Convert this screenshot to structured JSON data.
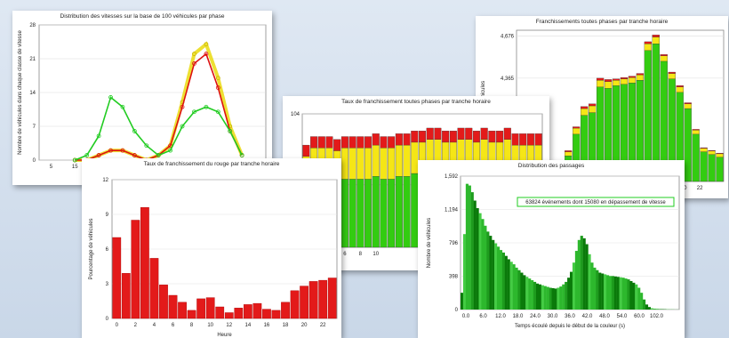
{
  "chart_data": [
    {
      "id": "speeds",
      "type": "line",
      "title": "Distribution des vitesses sur la base de 100 véhicules par phase",
      "ylabel": "Nombre de véhicules dans chaque classe de vitesse",
      "ylim": [
        0,
        28
      ],
      "yticks": [
        "0",
        "7",
        "14",
        "21",
        "28"
      ],
      "xlim": [
        0,
        95
      ],
      "xticks": [
        {
          "v": 5,
          "label": "5"
        },
        {
          "v": 15,
          "label": "15"
        },
        {
          "v": 25,
          "label": "25"
        }
      ],
      "series": [
        {
          "color": "#22cc22",
          "x": [
            15,
            20,
            25,
            30,
            35,
            40,
            45,
            50,
            55,
            60,
            65,
            70,
            75,
            80,
            85
          ],
          "values": [
            0,
            1,
            5,
            13,
            11,
            6,
            3,
            1,
            2,
            7,
            10,
            11,
            10,
            6,
            1
          ]
        },
        {
          "color": "#dd1111",
          "x": [
            15,
            20,
            25,
            30,
            35,
            40,
            45,
            50,
            55,
            60,
            65,
            70,
            75,
            80,
            85
          ],
          "values": [
            0,
            0,
            1,
            2,
            2,
            1,
            0,
            1,
            3,
            11,
            20,
            22,
            15,
            6,
            1
          ]
        },
        {
          "color": "#e8d800",
          "x": [
            15,
            20,
            25,
            30,
            35,
            40,
            45,
            50,
            55,
            60,
            65,
            70,
            75,
            80,
            85
          ],
          "values": [
            0,
            0,
            1,
            2,
            2,
            1,
            0,
            1,
            3,
            12,
            22,
            24,
            17,
            7,
            1
          ]
        }
      ]
    },
    {
      "id": "red_rate",
      "type": "bar",
      "title": "Taux de franchissement du rouge par tranche horaire",
      "ylabel": "Pourcentage de véhicules",
      "xlabel": "Heure",
      "ylim": [
        0,
        12
      ],
      "yticks": [
        "0",
        "3",
        "6",
        "9",
        "12"
      ],
      "xticks": [
        "0",
        "2",
        "4",
        "6",
        "8",
        "10",
        "12",
        "14",
        "16",
        "18",
        "20",
        "22"
      ],
      "color": "#e31a1a",
      "values": [
        7.0,
        3.9,
        8.5,
        9.6,
        5.2,
        2.9,
        2.0,
        1.4,
        0.7,
        1.7,
        1.8,
        1.0,
        0.5,
        0.9,
        1.2,
        1.3,
        0.8,
        0.7,
        1.4,
        2.4,
        2.8,
        3.2,
        3.3,
        3.5
      ]
    },
    {
      "id": "phases_rate",
      "type": "bar",
      "title": "Taux de franchissement toutes phases par tranche horaire",
      "ylim": [
        79,
        104
      ],
      "yticks": [
        {
          "v": 79,
          "label": "79"
        },
        {
          "v": 104,
          "label": "104"
        }
      ],
      "xticks": [
        "2",
        "4",
        "6",
        "8",
        "10"
      ],
      "series": [
        {
          "name": "green",
          "color": "#33cc11",
          "values": [
            80,
            81,
            81,
            81,
            80,
            81,
            81,
            81,
            81,
            82,
            81,
            81,
            82,
            82,
            83,
            83,
            84,
            84,
            83,
            83,
            84,
            84,
            83,
            84,
            83,
            83,
            84,
            82,
            82,
            82,
            82
          ]
        },
        {
          "name": "yellow",
          "color": "#f5e616",
          "values": [
            9,
            11,
            11,
            11,
            11,
            11,
            11,
            11,
            11,
            11,
            11,
            11,
            11,
            11,
            11,
            11,
            11,
            11,
            11,
            11,
            11,
            11,
            11,
            11,
            11,
            11,
            11,
            11,
            11,
            11,
            11
          ]
        },
        {
          "name": "red",
          "color": "#e31a1a",
          "values": [
            4,
            4,
            4,
            4,
            4,
            4,
            4,
            4,
            4,
            4,
            4,
            4,
            4,
            4,
            4,
            4,
            4,
            4,
            4,
            4,
            4,
            4,
            4,
            4,
            4,
            4,
            4,
            4,
            4,
            4,
            4
          ]
        }
      ]
    },
    {
      "id": "crossings",
      "type": "bar",
      "title": "Franchissements toutes phases par tranche horaire",
      "ylabel": "Nombre de véhicules",
      "yticks": [
        {
          "v": 4365,
          "label": "4,365"
        },
        {
          "v": 4676,
          "label": "4,676"
        }
      ],
      "xticks": [
        {
          "i": 20,
          "label": "18"
        },
        {
          "i": 22,
          "label": "20"
        },
        {
          "i": 24,
          "label": "22"
        }
      ],
      "ylim": [
        3600,
        4720
      ],
      "series": [
        {
          "name": "green",
          "color": "#33cc11",
          "values": [
            3650,
            3660,
            3700,
            3790,
            3950,
            4090,
            4110,
            4300,
            4290,
            4310,
            4320,
            4330,
            4350,
            4570,
            4620,
            4490,
            4360,
            4260,
            4140,
            3950,
            3820,
            3800,
            3780
          ]
        },
        {
          "name": "yellow",
          "color": "#f5e616",
          "values": [
            20,
            20,
            25,
            30,
            45,
            50,
            50,
            50,
            50,
            40,
            40,
            40,
            40,
            50,
            50,
            40,
            40,
            40,
            35,
            30,
            25,
            25,
            25
          ]
        },
        {
          "name": "red",
          "color": "#e31a1a",
          "values": [
            5,
            5,
            5,
            8,
            10,
            15,
            15,
            15,
            15,
            10,
            10,
            10,
            10,
            15,
            15,
            10,
            10,
            10,
            8,
            6,
            5,
            5,
            5
          ]
        }
      ]
    },
    {
      "id": "passages",
      "type": "bar",
      "title": "Distribution des passages",
      "ylabel": "Nombre de véhicules",
      "xlabel": "Temps écoulé depuis le début de la couleur (s)",
      "annotation": "63824 événements dont 15080 en dépassement de vitesse",
      "ylim": [
        0,
        1592
      ],
      "yticks": [
        {
          "v": 0,
          "label": "0"
        },
        {
          "v": 398,
          "label": "398"
        },
        {
          "v": 796,
          "label": "796"
        },
        {
          "v": 1194,
          "label": "1,194"
        },
        {
          "v": 1592,
          "label": "1,592"
        }
      ],
      "xticks": [
        "0.0",
        "6.0",
        "12.0",
        "18.0",
        "24.0",
        "30.0",
        "36.0",
        "42.0",
        "48.0",
        "54.0",
        "60.0",
        "102.0"
      ],
      "values": [
        200,
        900,
        1500,
        1480,
        1400,
        1300,
        1210,
        1150,
        1080,
        1000,
        930,
        880,
        830,
        790,
        750,
        710,
        680,
        640,
        600,
        570,
        540,
        500,
        470,
        440,
        410,
        390,
        370,
        350,
        330,
        310,
        300,
        290,
        280,
        270,
        260,
        255,
        250,
        260,
        275,
        300,
        330,
        380,
        450,
        560,
        700,
        830,
        880,
        850,
        780,
        660,
        560,
        500,
        470,
        440,
        430,
        420,
        410,
        400,
        400,
        395,
        390,
        385,
        380,
        370,
        360,
        340,
        320,
        300,
        260,
        200,
        120,
        60,
        30,
        15,
        10,
        8,
        6,
        5,
        4,
        3,
        2,
        2,
        1,
        1
      ],
      "colors": [
        "#0a7a0a",
        "#1e9c1e",
        "#2db82d",
        "#44cc44"
      ]
    }
  ]
}
